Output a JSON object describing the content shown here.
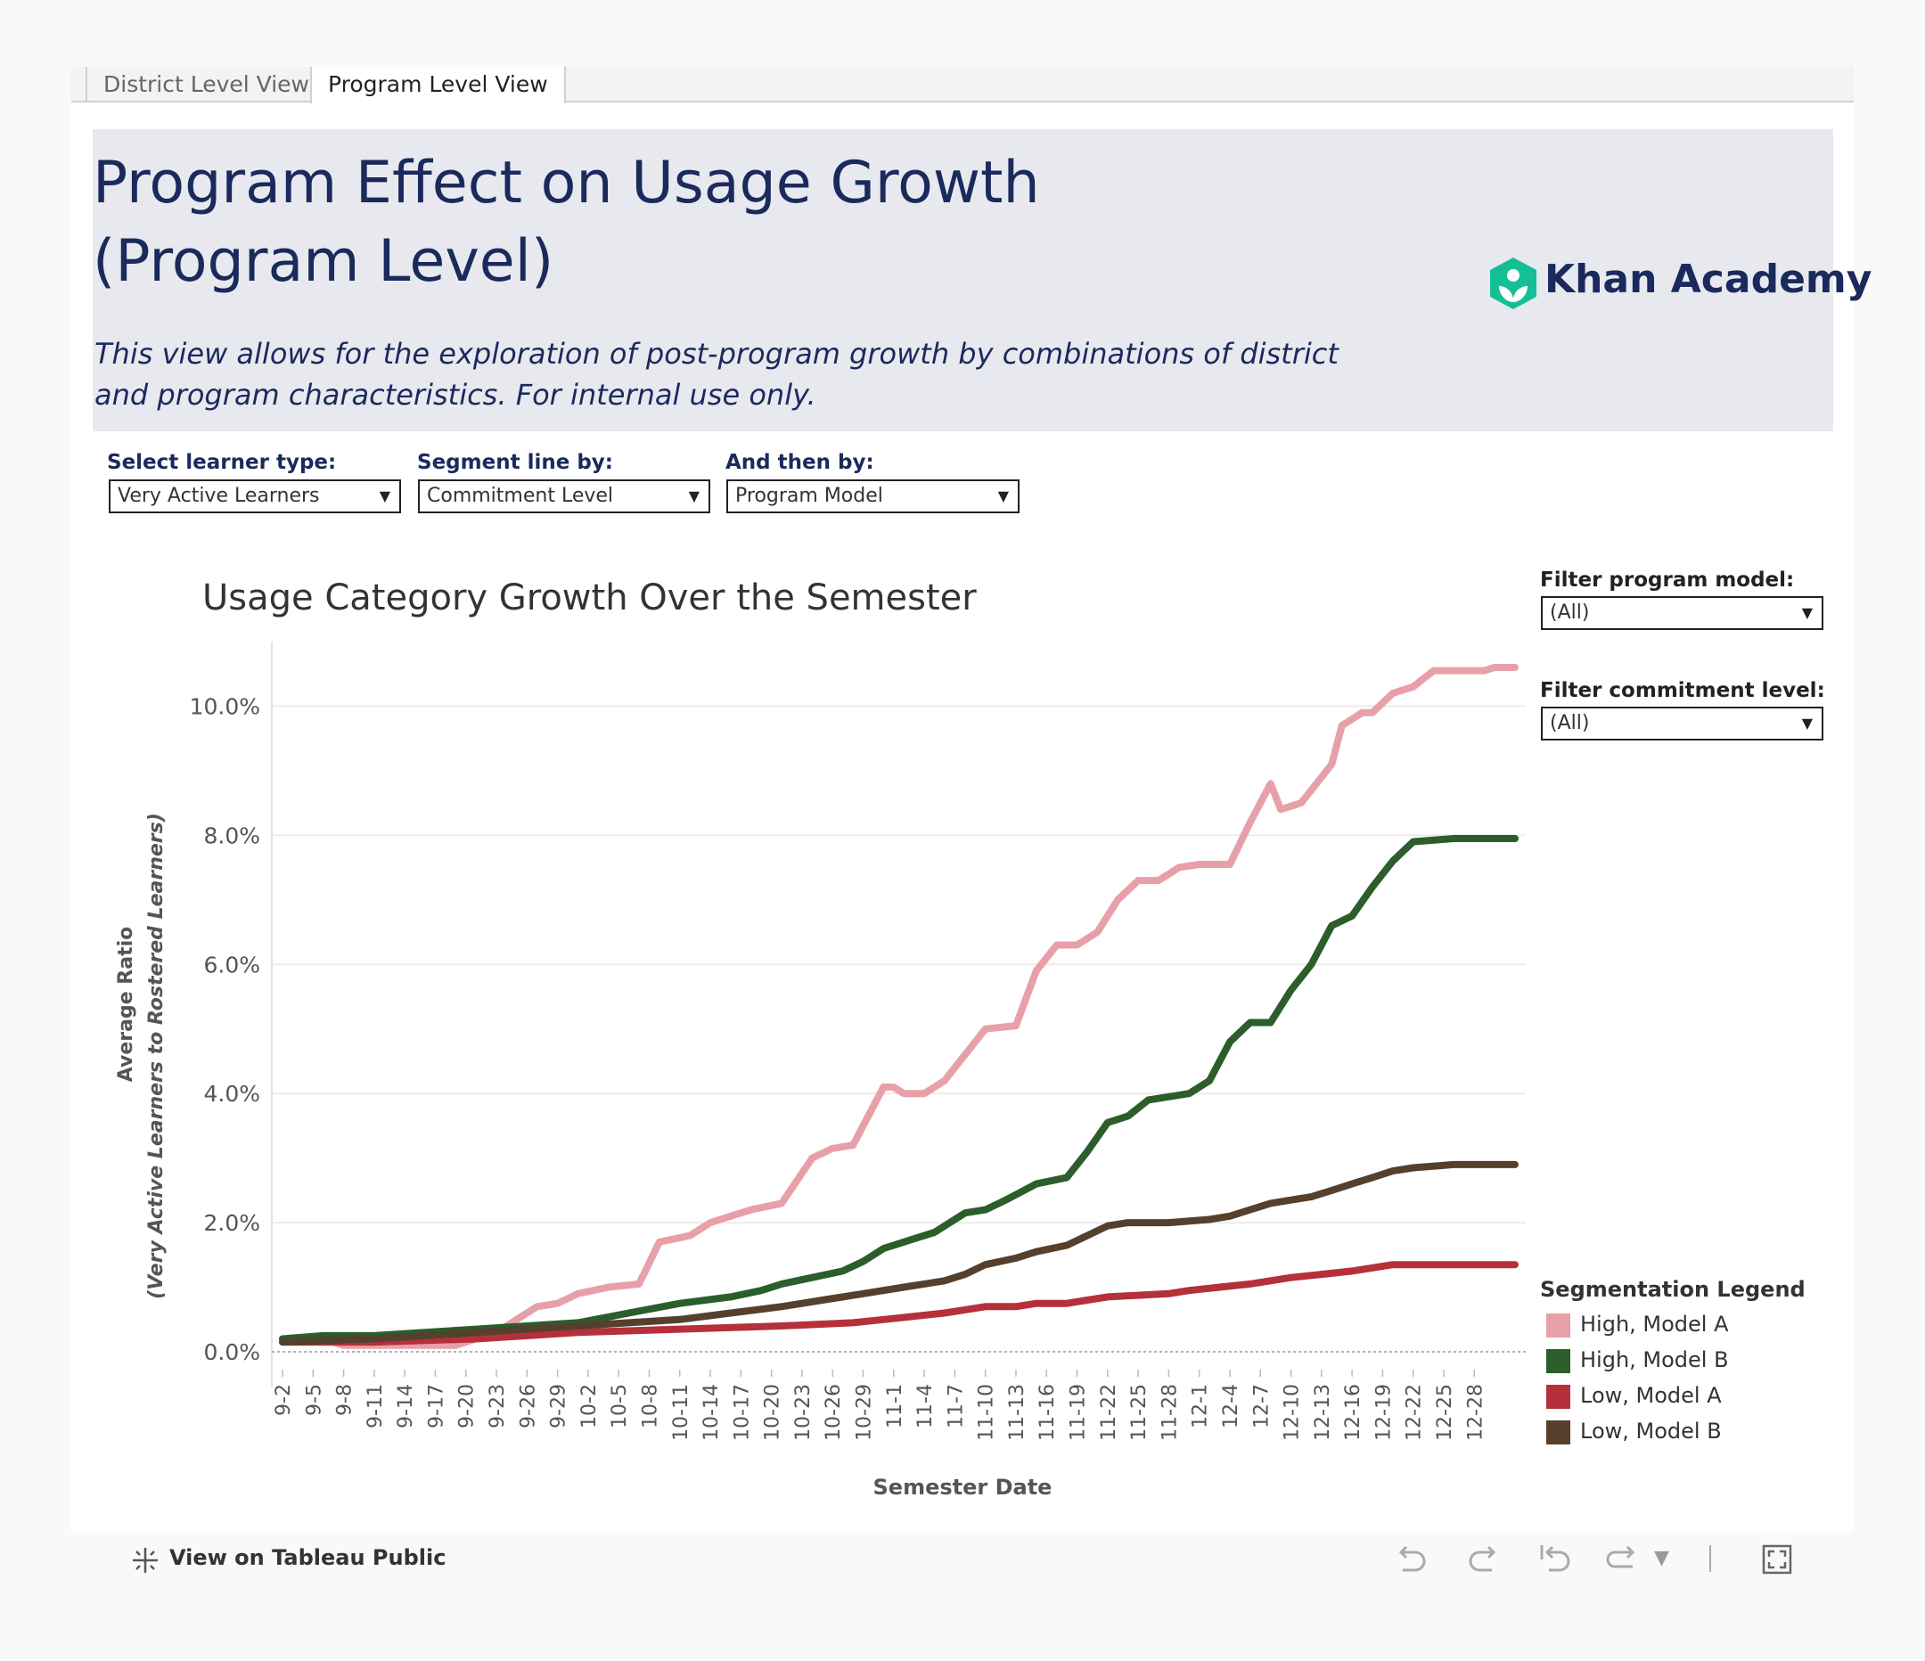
{
  "tabs": [
    {
      "label": "District Level View",
      "active": false
    },
    {
      "label": "Program Level View",
      "active": true
    }
  ],
  "header": {
    "title": "Program Effect on Usage Growth\n(Program Level)",
    "subtitle": "This view allows for the exploration of post-program growth by combinations of district and program characteristics. For internal use only.",
    "logo_text": "Khan Academy",
    "logo_icon": "khan-academy-logo-icon",
    "background": "#e8e9ef",
    "title_color": "#1b2a5c"
  },
  "filters": {
    "learner_type": {
      "label": "Select learner type:",
      "value": "Very Active Learners"
    },
    "segment_by": {
      "label": "Segment line by:",
      "value": "Commitment Level"
    },
    "then_by": {
      "label": "And then by:",
      "value": "Program Model"
    },
    "program_model": {
      "label": "Filter program model:",
      "value": "(All)"
    },
    "commitment_level": {
      "label": "Filter commitment level:",
      "value": "(All)"
    }
  },
  "chart_data": {
    "type": "line",
    "title": "Usage Category Growth Over the Semester",
    "xlabel": "Semester Date",
    "ylabel": "Average Ratio",
    "ylabel_sub": "(Very Active Learners to Rostered Learners)",
    "ylim": [
      0,
      11
    ],
    "y_ticks": [
      "0.0%",
      "2.0%",
      "4.0%",
      "6.0%",
      "8.0%",
      "10.0%"
    ],
    "x_tick_labels": [
      "9-2",
      "9-5",
      "9-8",
      "9-11",
      "9-14",
      "9-17",
      "9-20",
      "9-23",
      "9-26",
      "9-29",
      "10-2",
      "10-5",
      "10-8",
      "10-11",
      "10-14",
      "10-17",
      "10-20",
      "10-23",
      "10-26",
      "10-29",
      "11-1",
      "11-4",
      "11-7",
      "11-10",
      "11-13",
      "11-16",
      "11-19",
      "11-22",
      "11-25",
      "11-28",
      "12-1",
      "12-4",
      "12-7",
      "12-10",
      "12-13",
      "12-16",
      "12-19",
      "12-22",
      "12-25",
      "12-28"
    ],
    "x_day_range": [
      1,
      122
    ],
    "grid": true,
    "series": [
      {
        "name": "High, Model A",
        "color": "#e8a0a8",
        "points": [
          [
            1,
            0.2
          ],
          [
            5,
            0.2
          ],
          [
            7,
            0.1
          ],
          [
            18,
            0.1
          ],
          [
            20,
            0.2
          ],
          [
            22,
            0.3
          ],
          [
            24,
            0.5
          ],
          [
            26,
            0.7
          ],
          [
            28,
            0.75
          ],
          [
            30,
            0.9
          ],
          [
            33,
            1.0
          ],
          [
            36,
            1.05
          ],
          [
            38,
            1.7
          ],
          [
            41,
            1.8
          ],
          [
            43,
            2.0
          ],
          [
            45,
            2.1
          ],
          [
            47,
            2.2
          ],
          [
            50,
            2.3
          ],
          [
            53,
            3.0
          ],
          [
            55,
            3.15
          ],
          [
            57,
            3.2
          ],
          [
            60,
            4.1
          ],
          [
            61,
            4.1
          ],
          [
            62,
            4.0
          ],
          [
            64,
            4.0
          ],
          [
            66,
            4.2
          ],
          [
            68,
            4.6
          ],
          [
            70,
            5.0
          ],
          [
            73,
            5.05
          ],
          [
            75,
            5.9
          ],
          [
            77,
            6.3
          ],
          [
            79,
            6.3
          ],
          [
            81,
            6.5
          ],
          [
            83,
            7.0
          ],
          [
            85,
            7.3
          ],
          [
            87,
            7.3
          ],
          [
            89,
            7.5
          ],
          [
            91,
            7.55
          ],
          [
            94,
            7.55
          ],
          [
            96,
            8.2
          ],
          [
            98,
            8.8
          ],
          [
            99,
            8.4
          ],
          [
            101,
            8.5
          ],
          [
            104,
            9.1
          ],
          [
            105,
            9.7
          ],
          [
            107,
            9.9
          ],
          [
            108,
            9.9
          ],
          [
            110,
            10.2
          ],
          [
            112,
            10.3
          ],
          [
            114,
            10.55
          ],
          [
            117,
            10.55
          ],
          [
            119,
            10.55
          ],
          [
            120,
            10.6
          ],
          [
            122,
            10.6
          ]
        ]
      },
      {
        "name": "High, Model B",
        "color": "#2b5e2a",
        "points": [
          [
            1,
            0.2
          ],
          [
            5,
            0.25
          ],
          [
            10,
            0.25
          ],
          [
            15,
            0.3
          ],
          [
            20,
            0.35
          ],
          [
            25,
            0.4
          ],
          [
            30,
            0.45
          ],
          [
            35,
            0.6
          ],
          [
            40,
            0.75
          ],
          [
            45,
            0.85
          ],
          [
            48,
            0.95
          ],
          [
            50,
            1.05
          ],
          [
            53,
            1.15
          ],
          [
            56,
            1.25
          ],
          [
            58,
            1.4
          ],
          [
            60,
            1.6
          ],
          [
            62,
            1.7
          ],
          [
            65,
            1.85
          ],
          [
            68,
            2.15
          ],
          [
            70,
            2.2
          ],
          [
            72,
            2.35
          ],
          [
            75,
            2.6
          ],
          [
            78,
            2.7
          ],
          [
            80,
            3.1
          ],
          [
            82,
            3.55
          ],
          [
            84,
            3.65
          ],
          [
            86,
            3.9
          ],
          [
            88,
            3.95
          ],
          [
            90,
            4.0
          ],
          [
            92,
            4.2
          ],
          [
            94,
            4.8
          ],
          [
            96,
            5.1
          ],
          [
            98,
            5.1
          ],
          [
            100,
            5.6
          ],
          [
            102,
            6.0
          ],
          [
            104,
            6.6
          ],
          [
            106,
            6.75
          ],
          [
            108,
            7.2
          ],
          [
            110,
            7.6
          ],
          [
            112,
            7.9
          ],
          [
            116,
            7.95
          ],
          [
            119,
            7.95
          ],
          [
            122,
            7.95
          ]
        ]
      },
      {
        "name": "Low, Model A",
        "color": "#b5303a",
        "points": [
          [
            1,
            0.15
          ],
          [
            10,
            0.15
          ],
          [
            20,
            0.2
          ],
          [
            30,
            0.3
          ],
          [
            40,
            0.35
          ],
          [
            50,
            0.4
          ],
          [
            57,
            0.45
          ],
          [
            60,
            0.5
          ],
          [
            63,
            0.55
          ],
          [
            66,
            0.6
          ],
          [
            68,
            0.65
          ],
          [
            70,
            0.7
          ],
          [
            73,
            0.7
          ],
          [
            75,
            0.75
          ],
          [
            78,
            0.75
          ],
          [
            80,
            0.8
          ],
          [
            82,
            0.85
          ],
          [
            88,
            0.9
          ],
          [
            90,
            0.95
          ],
          [
            93,
            1.0
          ],
          [
            96,
            1.05
          ],
          [
            98,
            1.1
          ],
          [
            100,
            1.15
          ],
          [
            103,
            1.2
          ],
          [
            106,
            1.25
          ],
          [
            108,
            1.3
          ],
          [
            110,
            1.35
          ],
          [
            114,
            1.35
          ],
          [
            122,
            1.35
          ]
        ]
      },
      {
        "name": "Low, Model B",
        "color": "#55402e",
        "points": [
          [
            1,
            0.15
          ],
          [
            10,
            0.2
          ],
          [
            15,
            0.25
          ],
          [
            20,
            0.3
          ],
          [
            25,
            0.35
          ],
          [
            30,
            0.4
          ],
          [
            35,
            0.45
          ],
          [
            40,
            0.5
          ],
          [
            45,
            0.6
          ],
          [
            50,
            0.7
          ],
          [
            54,
            0.8
          ],
          [
            58,
            0.9
          ],
          [
            62,
            1.0
          ],
          [
            64,
            1.05
          ],
          [
            66,
            1.1
          ],
          [
            68,
            1.2
          ],
          [
            70,
            1.35
          ],
          [
            73,
            1.45
          ],
          [
            75,
            1.55
          ],
          [
            78,
            1.65
          ],
          [
            80,
            1.8
          ],
          [
            82,
            1.95
          ],
          [
            84,
            2.0
          ],
          [
            86,
            2.0
          ],
          [
            88,
            2.0
          ],
          [
            92,
            2.05
          ],
          [
            94,
            2.1
          ],
          [
            96,
            2.2
          ],
          [
            98,
            2.3
          ],
          [
            100,
            2.35
          ],
          [
            102,
            2.4
          ],
          [
            104,
            2.5
          ],
          [
            106,
            2.6
          ],
          [
            108,
            2.7
          ],
          [
            110,
            2.8
          ],
          [
            112,
            2.85
          ],
          [
            116,
            2.9
          ],
          [
            122,
            2.9
          ]
        ]
      }
    ]
  },
  "legend": {
    "title": "Segmentation Legend"
  },
  "footer": {
    "link_label": "View on Tableau Public",
    "icons": [
      "undo-icon",
      "redo-icon",
      "revert-icon",
      "refresh-icon",
      "share-dropdown-icon",
      "fullscreen-icon"
    ]
  }
}
